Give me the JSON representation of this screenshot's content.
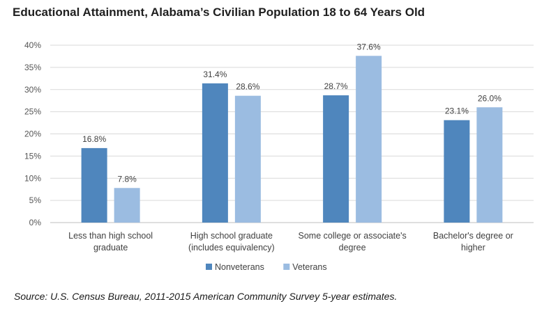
{
  "chart_data": {
    "type": "bar",
    "title": "Educational Attainment, Alabama’s Civilian Population 18 to 64 Years Old",
    "categories": [
      [
        "Less than high school",
        "graduate"
      ],
      [
        "High school graduate",
        "(includes equivalency)"
      ],
      [
        "Some college or associate's",
        "degree"
      ],
      [
        "Bachelor's degree or",
        "higher"
      ]
    ],
    "series": [
      {
        "name": "Nonveterans",
        "values": [
          16.8,
          31.4,
          28.7,
          23.1
        ],
        "color": "#4f86bd"
      },
      {
        "name": "Veterans",
        "values": [
          7.8,
          28.6,
          37.6,
          26.0
        ],
        "color": "#9bbce1"
      }
    ],
    "data_labels": [
      [
        "16.8%",
        "31.4%",
        "28.7%",
        "23.1%"
      ],
      [
        "7.8%",
        "28.6%",
        "37.6%",
        "26.0%"
      ]
    ],
    "y_ticks": [
      "0%",
      "5%",
      "10%",
      "15%",
      "20%",
      "25%",
      "30%",
      "35%",
      "40%"
    ],
    "ylim": [
      0,
      40
    ],
    "xlabel": "",
    "ylabel": "",
    "grid": true,
    "legend_position": "bottom",
    "gridline_color": "#d9d9d9"
  },
  "source_note": "Source: U.S. Census Bureau, 2011-2015 American Community Survey 5-year estimates."
}
